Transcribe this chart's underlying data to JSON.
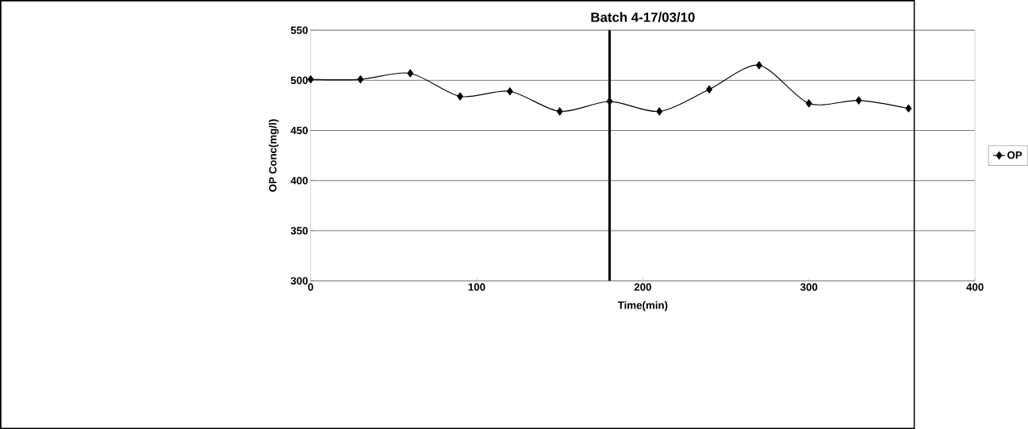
{
  "chart_data": {
    "type": "line",
    "title": "Batch 4-17/03/10",
    "xlabel": "Time(min)",
    "ylabel": "OP Conc(mg/l)",
    "x": [
      0,
      30,
      60,
      90,
      120,
      150,
      180,
      210,
      240,
      270,
      300,
      330,
      360
    ],
    "series": [
      {
        "name": "OP",
        "color": "#000000",
        "values": [
          501,
          501,
          507,
          484,
          489,
          469,
          479,
          469,
          491,
          515,
          477,
          480,
          472
        ]
      }
    ],
    "xlim": [
      0,
      400
    ],
    "ylim": [
      300,
      550
    ],
    "xticks": [
      0,
      100,
      200,
      300,
      400
    ],
    "yticks": [
      300,
      350,
      400,
      450,
      500,
      550
    ],
    "grid": "y",
    "legend": "right",
    "marker": "diamond",
    "line_style": "solid",
    "ref_lines": [
      {
        "axis": "x",
        "value": 180,
        "color": "#000000"
      }
    ]
  }
}
